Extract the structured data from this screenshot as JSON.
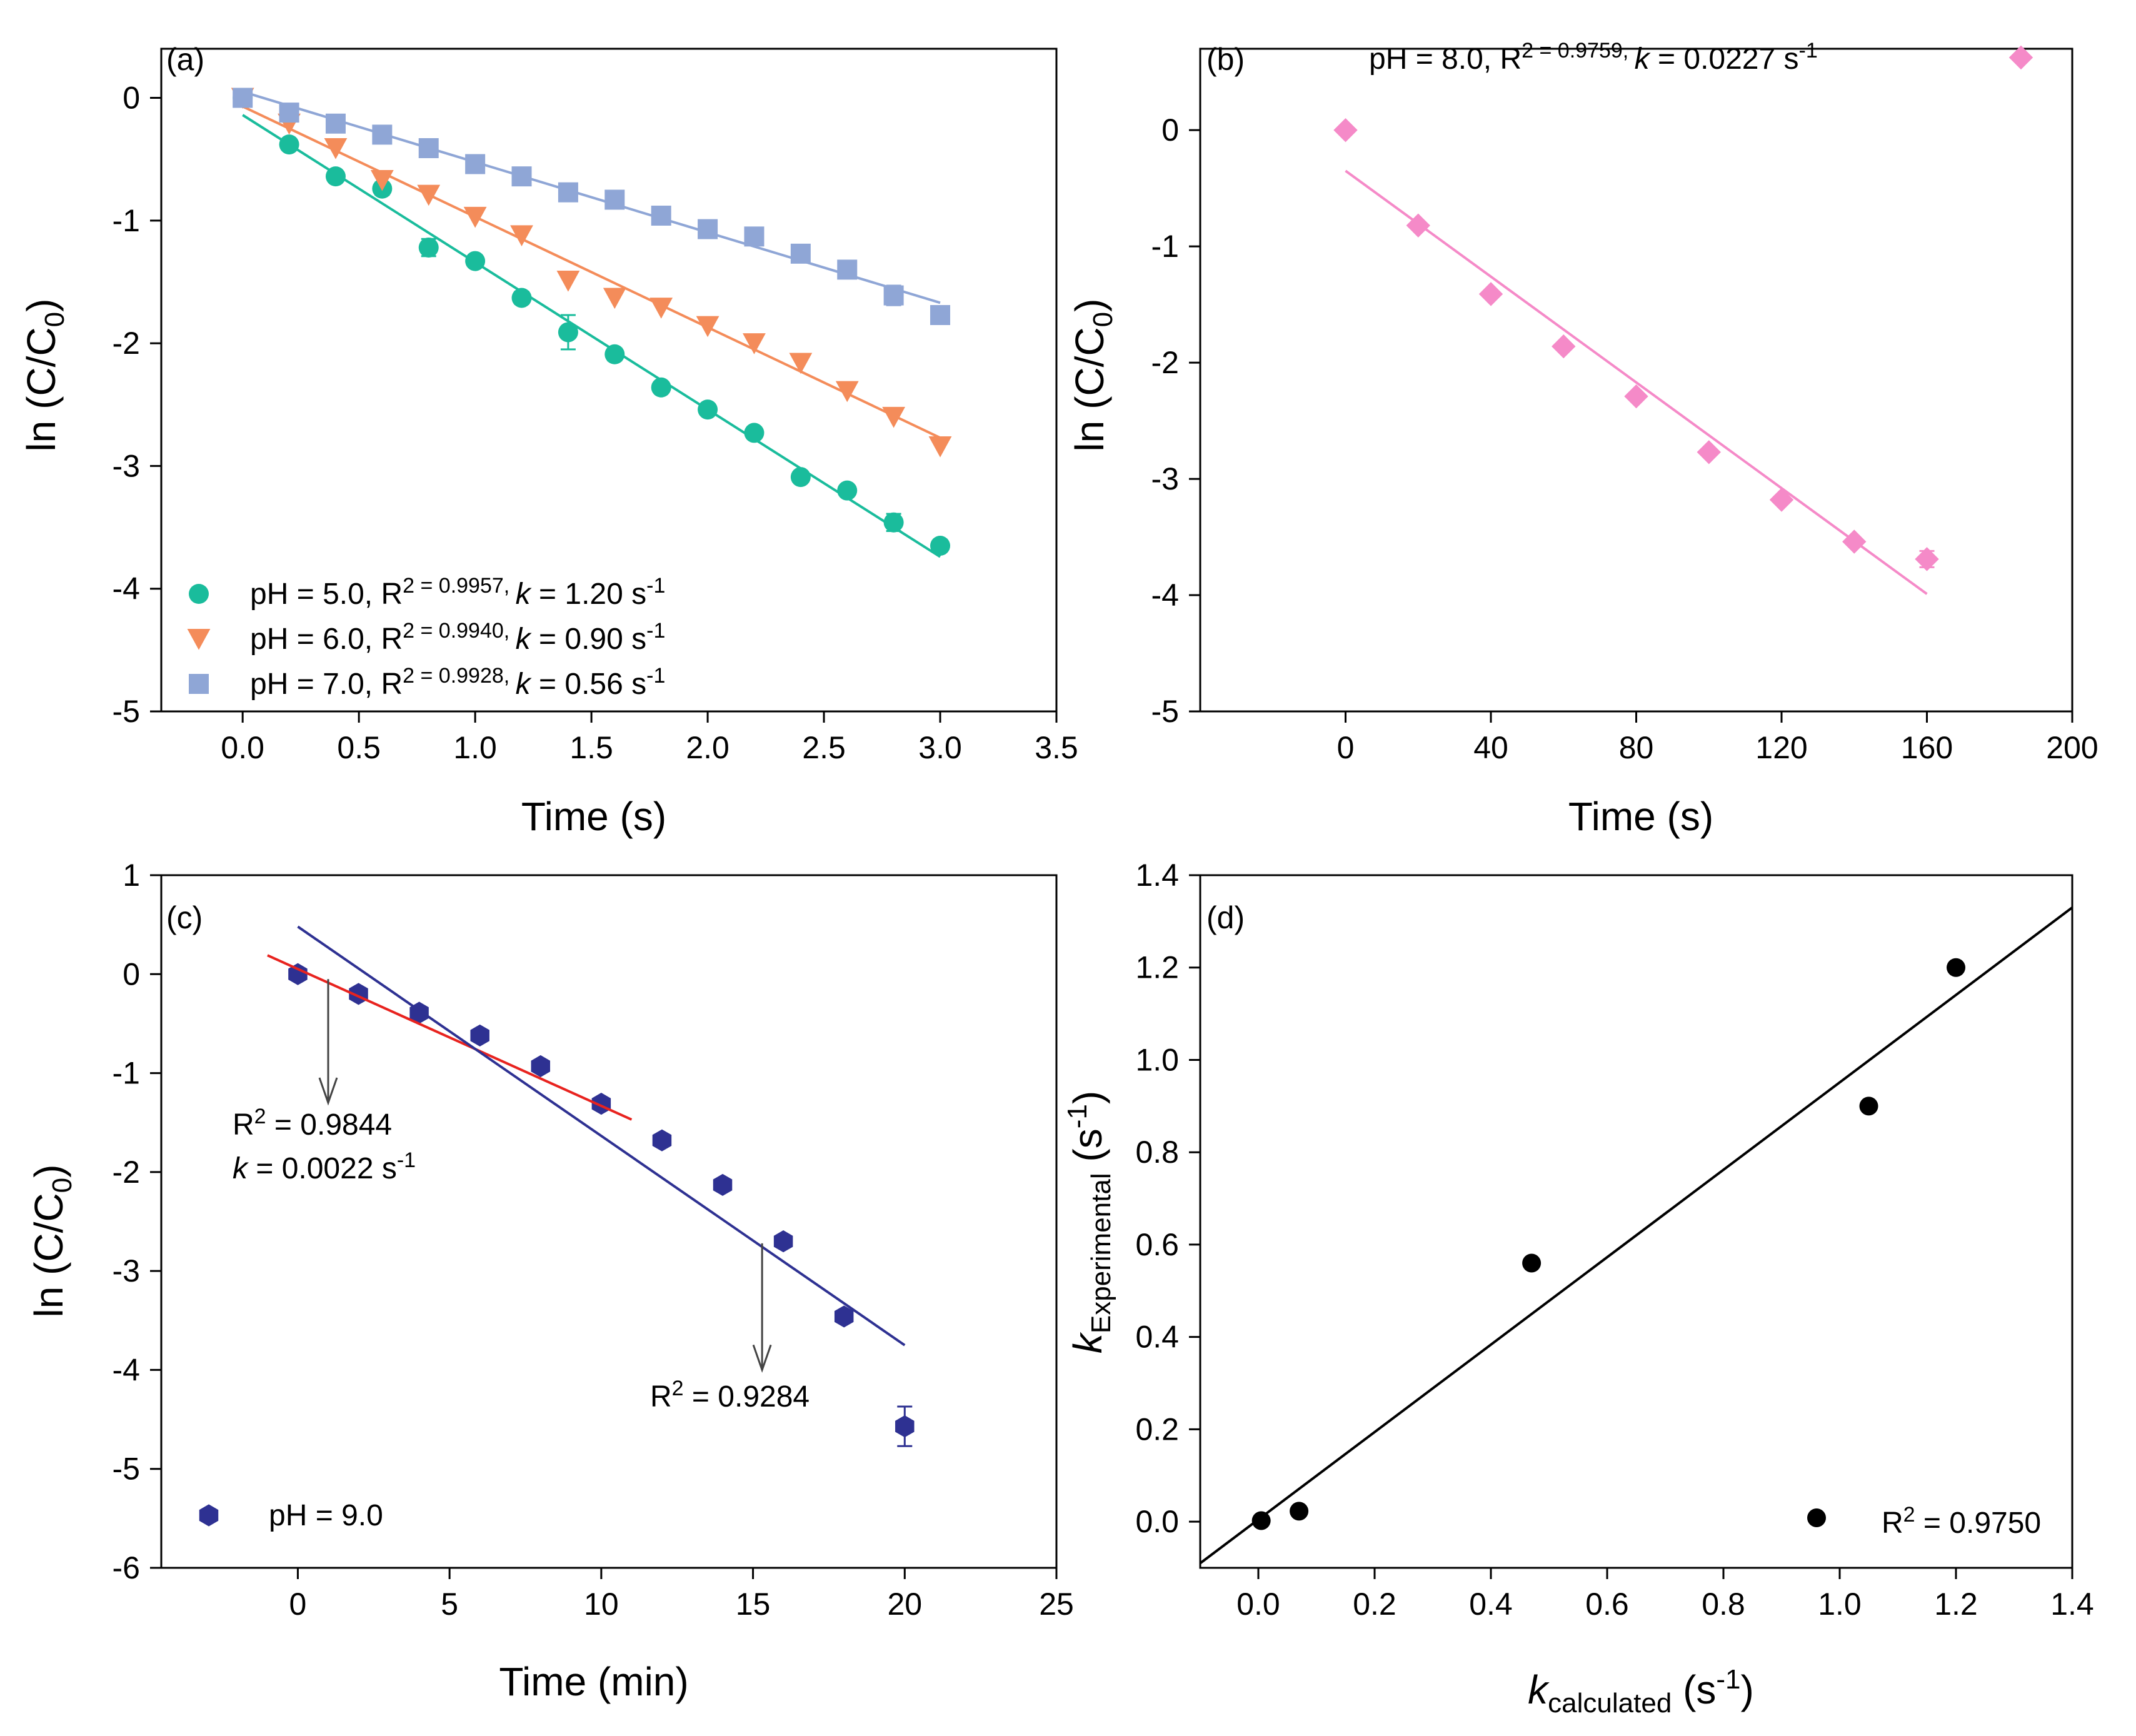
{
  "chart_data": [
    {
      "panel": "(a)",
      "type": "scatter",
      "xlabel": "Time (s)",
      "ylabel": "ln (C/C0)",
      "xlim": [
        -0.35,
        3.5
      ],
      "ylim": [
        -5,
        0.4
      ],
      "xticks": [
        "0.0",
        "0.5",
        "1.0",
        "1.5",
        "2.0",
        "2.5",
        "3.0",
        "3.5"
      ],
      "yticks": [
        "0",
        "-1",
        "-2",
        "-3",
        "-4",
        "-5"
      ],
      "legend_position": "bottom-left",
      "series": [
        {
          "name": "pH = 5.0, R2 = 0.9957, k = 1.20 s-1",
          "legend_text": "pH = 5.0, R",
          "r2_text": "2 = 0.9957, ",
          "k_text": "k",
          "k_val": " = 1.20 s",
          "unit_sup": "-1",
          "marker": "circle",
          "color": "#1abc9c",
          "x": [
            0,
            0.2,
            0.4,
            0.6,
            0.8,
            1.0,
            1.2,
            1.4,
            1.6,
            1.8,
            2.0,
            2.2,
            2.4,
            2.6,
            2.8,
            3.0
          ],
          "y": [
            0,
            -0.38,
            -0.64,
            -0.74,
            -1.22,
            -1.33,
            -1.63,
            -1.91,
            -2.09,
            -2.36,
            -2.54,
            -2.73,
            -3.09,
            -3.2,
            -3.46,
            -3.65
          ],
          "err": [
            0,
            0,
            0,
            0.05,
            0.07,
            0,
            0.05,
            0.14,
            0.05,
            0,
            0,
            0,
            0,
            0,
            0.07,
            0
          ],
          "fit": {
            "x": [
              0,
              3.0
            ],
            "y": [
              -0.14,
              -3.74
            ]
          }
        },
        {
          "name": "pH = 6.0, R2 = 0.9940, k = 0.90 s-1",
          "legend_text": "pH = 6.0, R",
          "r2_text": "2 = 0.9940, ",
          "k_text": "k",
          "k_val": " = 0.90 s",
          "unit_sup": "-1",
          "marker": "triangle-down",
          "color": "#f48c5a",
          "x": [
            0,
            0.2,
            0.4,
            0.6,
            0.8,
            1.0,
            1.2,
            1.4,
            1.6,
            1.8,
            2.0,
            2.2,
            2.4,
            2.6,
            2.8,
            3.0
          ],
          "y": [
            0,
            -0.21,
            -0.41,
            -0.67,
            -0.79,
            -0.97,
            -1.12,
            -1.49,
            -1.63,
            -1.71,
            -1.86,
            -2.0,
            -2.16,
            -2.39,
            -2.6,
            -2.84
          ],
          "err": [
            0,
            0,
            0,
            0,
            0,
            0,
            0,
            0,
            0,
            0,
            0,
            0,
            0,
            0,
            0,
            0
          ],
          "fit": {
            "x": [
              0,
              3.0
            ],
            "y": [
              -0.07,
              -2.77
            ]
          }
        },
        {
          "name": "pH = 7.0, R2 = 0.9928, k = 0.56 s-1",
          "legend_text": "pH = 7.0, R",
          "r2_text": "2 = 0.9928, ",
          "k_text": "k",
          "k_val": " = 0.56 s",
          "unit_sup": "-1",
          "marker": "square",
          "color": "#8fa6d6",
          "x": [
            0,
            0.2,
            0.4,
            0.6,
            0.8,
            1.0,
            1.2,
            1.4,
            1.6,
            1.8,
            2.0,
            2.2,
            2.4,
            2.6,
            2.8,
            3.0
          ],
          "y": [
            0,
            -0.12,
            -0.21,
            -0.3,
            -0.41,
            -0.54,
            -0.64,
            -0.77,
            -0.83,
            -0.96,
            -1.07,
            -1.13,
            -1.27,
            -1.4,
            -1.61,
            -1.77
          ],
          "err": [
            0,
            0,
            0,
            0,
            0,
            0,
            0,
            0,
            0,
            0,
            0,
            0,
            0,
            0.05,
            0.08,
            0
          ],
          "fit": {
            "x": [
              0,
              3.0
            ],
            "y": [
              0.05,
              -1.67
            ]
          }
        }
      ]
    },
    {
      "panel": "(b)",
      "type": "scatter",
      "xlabel": "Time (s)",
      "ylabel": "ln (C/C0)",
      "xlim": [
        -40,
        200
      ],
      "ylim": [
        -5,
        0.7
      ],
      "xticks": [
        "0",
        "40",
        "80",
        "120",
        "160",
        "200"
      ],
      "yticks": [
        "0",
        "-1",
        "-2",
        "-3",
        "-4",
        "-5"
      ],
      "legend_position": "top",
      "series": [
        {
          "name": "pH = 8.0, R2 = 0.9759, k = 0.0227 s-1",
          "legend_text": "pH = 8.0, R",
          "r2_text": "2 = 0.9759, ",
          "k_text": "k",
          "k_val": " = 0.0227 s",
          "unit_sup": "-1",
          "marker": "diamond",
          "color": "#f58ac8",
          "x": [
            0,
            20,
            40,
            60,
            80,
            100,
            120,
            140,
            160
          ],
          "y": [
            0,
            -0.82,
            -1.41,
            -1.86,
            -2.29,
            -2.77,
            -3.18,
            -3.54,
            -3.69
          ],
          "err": [
            0,
            0,
            0,
            0,
            0,
            0,
            0,
            0,
            0.07
          ],
          "fit": {
            "x": [
              0,
              160
            ],
            "y": [
              -0.35,
              -3.99
            ]
          }
        }
      ]
    },
    {
      "panel": "(c)",
      "type": "scatter",
      "xlabel": "Time (min)",
      "ylabel": "ln (C/C0)",
      "xlim": [
        -4.5,
        25
      ],
      "ylim": [
        -6,
        1
      ],
      "xticks": [
        "0",
        "5",
        "10",
        "15",
        "20",
        "25"
      ],
      "yticks": [
        "1",
        "0",
        "-1",
        "-2",
        "-3",
        "-4",
        "-5",
        "-6"
      ],
      "legend_position": "bottom-left",
      "series": [
        {
          "name": "pH = 9.0",
          "marker": "hexagon",
          "color": "#2e3192",
          "x": [
            0,
            2,
            4,
            6,
            8,
            10,
            12,
            14,
            16,
            18,
            20
          ],
          "y": [
            0,
            -0.2,
            -0.39,
            -0.62,
            -0.93,
            -1.31,
            -1.68,
            -2.13,
            -2.7,
            -3.46,
            -4.57
          ],
          "err": [
            0,
            0,
            0,
            0,
            0,
            0,
            0,
            0,
            0,
            0,
            0.2
          ]
        }
      ],
      "fits": [
        {
          "name": "early",
          "color": "#e8231f",
          "x": [
            -1,
            11
          ],
          "y": [
            0.19,
            -1.47
          ]
        },
        {
          "name": "full",
          "color": "#2e3192",
          "x": [
            0,
            20
          ],
          "y": [
            0.48,
            -3.75
          ]
        }
      ],
      "annotations": [
        {
          "line1_a": "R",
          "line1_sup": "2",
          "line1_b": " = 0.9844",
          "line2_k": "k",
          "line2_b": " = 0.0022 s",
          "line2_sup": "-1",
          "arrow_x": 1,
          "arrow_from": -0.05,
          "arrow_to": -1.3
        },
        {
          "line1_a": "R",
          "line1_sup": "2",
          "line1_b": " = 0.9284",
          "arrow_x": 15.3,
          "arrow_from": -2.72,
          "arrow_to": -4.0
        }
      ]
    },
    {
      "panel": "(d)",
      "type": "scatter",
      "xlabel_k": "k",
      "xlabel_sub": "calculated",
      "xlabel_unit": " (s",
      "xlabel_sup": "-1",
      "ylabel_k": "k",
      "ylabel_sub": "Experimental",
      "ylabel_unit": " (s",
      "ylabel_sup": "-1",
      "xlim": [
        -0.1,
        1.4
      ],
      "ylim": [
        -0.1,
        1.4
      ],
      "xticks": [
        "0.0",
        "0.2",
        "0.4",
        "0.6",
        "0.8",
        "1.0",
        "1.2",
        "1.4"
      ],
      "yticks": [
        "0.0",
        "0.2",
        "0.4",
        "0.6",
        "0.8",
        "1.0",
        "1.2",
        "1.4"
      ],
      "legend_position": "bottom-right",
      "legend_a": "R",
      "legend_sup": "2",
      "legend_b": " = 0.9750",
      "points": {
        "x": [
          0.005,
          0.07,
          0.47,
          1.05,
          1.2
        ],
        "y": [
          0.0022,
          0.0227,
          0.56,
          0.9,
          1.2
        ]
      },
      "fit": {
        "x": [
          -0.1,
          1.4
        ],
        "y": [
          -0.09,
          1.33
        ]
      },
      "color": "#000000"
    }
  ]
}
